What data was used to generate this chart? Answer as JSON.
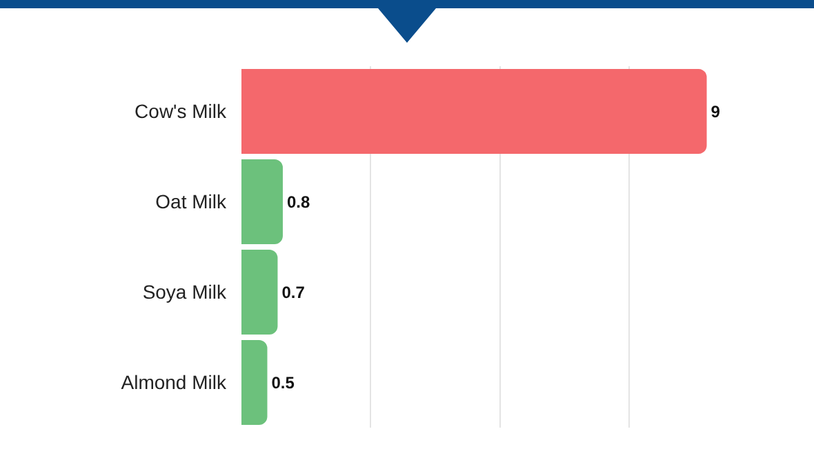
{
  "chart_data": {
    "type": "bar",
    "orientation": "horizontal",
    "categories": [
      "Cow's Milk",
      "Oat Milk",
      "Soya Milk",
      "Almond Milk"
    ],
    "values": [
      9,
      0.8,
      0.7,
      0.5
    ],
    "colors": [
      "#f4686c",
      "#6cc17c",
      "#6cc17c",
      "#6cc17c"
    ],
    "xticks": [
      {
        "value": 2.5,
        "label": null
      },
      {
        "value": 5,
        "label": null
      },
      {
        "value": 7.5,
        "label": null
      }
    ],
    "tick_labels": "y",
    "grid": "x",
    "data_labels": true
  }
}
